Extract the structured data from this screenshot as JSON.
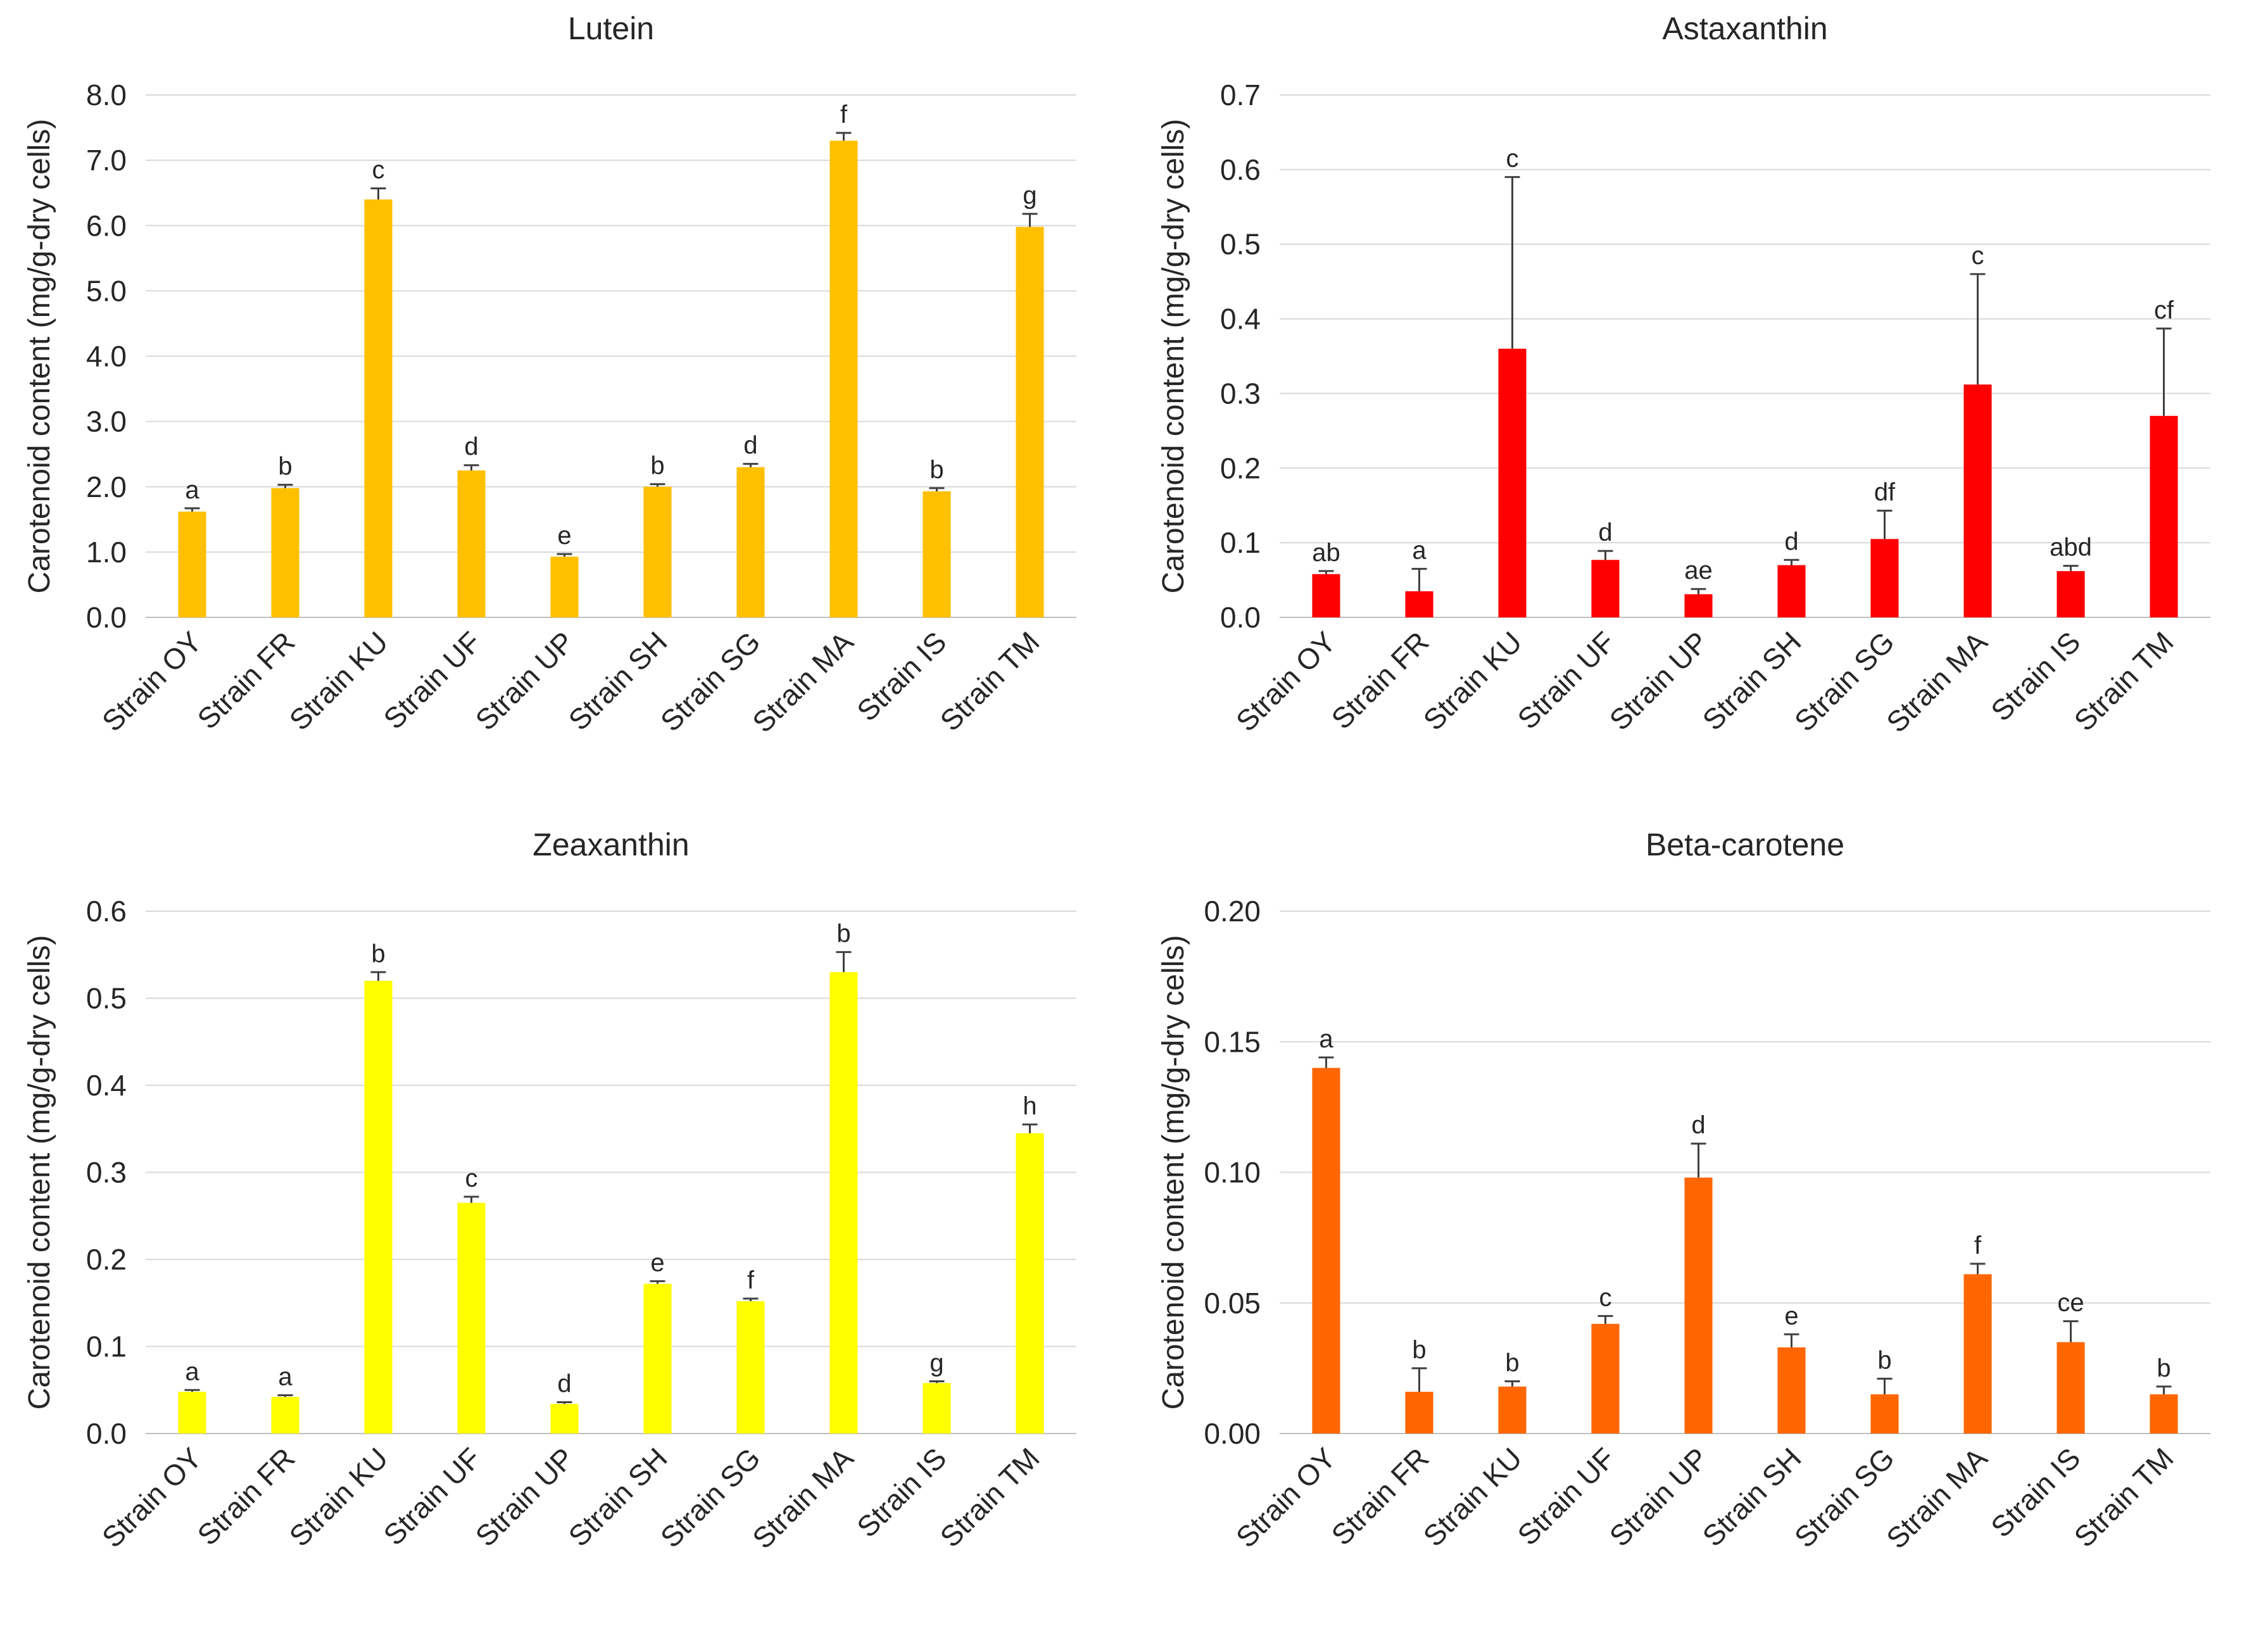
{
  "figure": {
    "ylabel": "Carotenoid content (mg/g-dry cells)",
    "categories": [
      "Strain OY",
      "Strain FR",
      "Strain KU",
      "Strain UF",
      "Strain UP",
      "Strain SH",
      "Strain SG",
      "Strain MA",
      "Strain IS",
      "Strain TM"
    ]
  },
  "chart_data": [
    {
      "type": "bar",
      "title": "Lutein",
      "color": "#ffc000",
      "categories": [
        "Strain OY",
        "Strain FR",
        "Strain KU",
        "Strain UF",
        "Strain UP",
        "Strain SH",
        "Strain SG",
        "Strain MA",
        "Strain IS",
        "Strain TM"
      ],
      "values": [
        1.62,
        1.98,
        6.4,
        2.25,
        0.93,
        2.0,
        2.3,
        7.3,
        1.93,
        5.98
      ],
      "errors": [
        0.05,
        0.05,
        0.17,
        0.08,
        0.04,
        0.04,
        0.05,
        0.12,
        0.05,
        0.2
      ],
      "significance": [
        "a",
        "b",
        "c",
        "d",
        "e",
        "b",
        "d",
        "f",
        "b",
        "g"
      ],
      "ylim": [
        0,
        8
      ],
      "yticks": [
        "0.0",
        "1.0",
        "2.0",
        "3.0",
        "4.0",
        "5.0",
        "6.0",
        "7.0",
        "8.0"
      ],
      "xlabel": "",
      "ylabel": "Carotenoid content (mg/g-dry cells)"
    },
    {
      "type": "bar",
      "title": "Astaxanthin",
      "color": "#ff0000",
      "categories": [
        "Strain OY",
        "Strain FR",
        "Strain KU",
        "Strain UF",
        "Strain UP",
        "Strain SH",
        "Strain SG",
        "Strain MA",
        "Strain IS",
        "Strain TM"
      ],
      "values": [
        0.058,
        0.035,
        0.36,
        0.077,
        0.031,
        0.07,
        0.105,
        0.312,
        0.062,
        0.27
      ],
      "errors": [
        0.004,
        0.03,
        0.23,
        0.012,
        0.007,
        0.007,
        0.038,
        0.148,
        0.007,
        0.117
      ],
      "significance": [
        "ab",
        "a",
        "c",
        "d",
        "ae",
        "d",
        "df",
        "c",
        "abd",
        "cf"
      ],
      "ylim": [
        0,
        0.7
      ],
      "yticks": [
        "0.0",
        "0.1",
        "0.2",
        "0.3",
        "0.4",
        "0.5",
        "0.6",
        "0.7"
      ],
      "xlabel": "",
      "ylabel": "Carotenoid content (mg/g-dry cells)"
    },
    {
      "type": "bar",
      "title": "Zeaxanthin",
      "color": "#ffff00",
      "categories": [
        "Strain OY",
        "Strain FR",
        "Strain KU",
        "Strain UF",
        "Strain UP",
        "Strain SH",
        "Strain SG",
        "Strain MA",
        "Strain IS",
        "Strain TM"
      ],
      "values": [
        0.048,
        0.042,
        0.52,
        0.265,
        0.034,
        0.172,
        0.152,
        0.53,
        0.058,
        0.345
      ],
      "errors": [
        0.002,
        0.002,
        0.01,
        0.007,
        0.002,
        0.003,
        0.003,
        0.023,
        0.002,
        0.01
      ],
      "significance": [
        "a",
        "a",
        "b",
        "c",
        "d",
        "e",
        "f",
        "b",
        "g",
        "h"
      ],
      "ylim": [
        0,
        0.6
      ],
      "yticks": [
        "0.0",
        "0.1",
        "0.2",
        "0.3",
        "0.4",
        "0.5",
        "0.6"
      ],
      "xlabel": "",
      "ylabel": "Carotenoid content (mg/g-dry cells)"
    },
    {
      "type": "bar",
      "title": "Beta-carotene",
      "color": "#ff6600",
      "categories": [
        "Strain OY",
        "Strain FR",
        "Strain KU",
        "Strain UF",
        "Strain UP",
        "Strain SH",
        "Strain SG",
        "Strain MA",
        "Strain IS",
        "Strain TM"
      ],
      "values": [
        0.14,
        0.016,
        0.018,
        0.042,
        0.098,
        0.033,
        0.015,
        0.061,
        0.035,
        0.015
      ],
      "errors": [
        0.004,
        0.009,
        0.002,
        0.003,
        0.013,
        0.005,
        0.006,
        0.004,
        0.008,
        0.003
      ],
      "significance": [
        "a",
        "b",
        "b",
        "c",
        "d",
        "e",
        "b",
        "f",
        "ce",
        "b"
      ],
      "ylim": [
        0,
        0.2
      ],
      "yticks": [
        "0.00",
        "0.05",
        "0.10",
        "0.15",
        "0.20"
      ],
      "xlabel": "",
      "ylabel": "Carotenoid content (mg/g-dry cells)"
    }
  ]
}
